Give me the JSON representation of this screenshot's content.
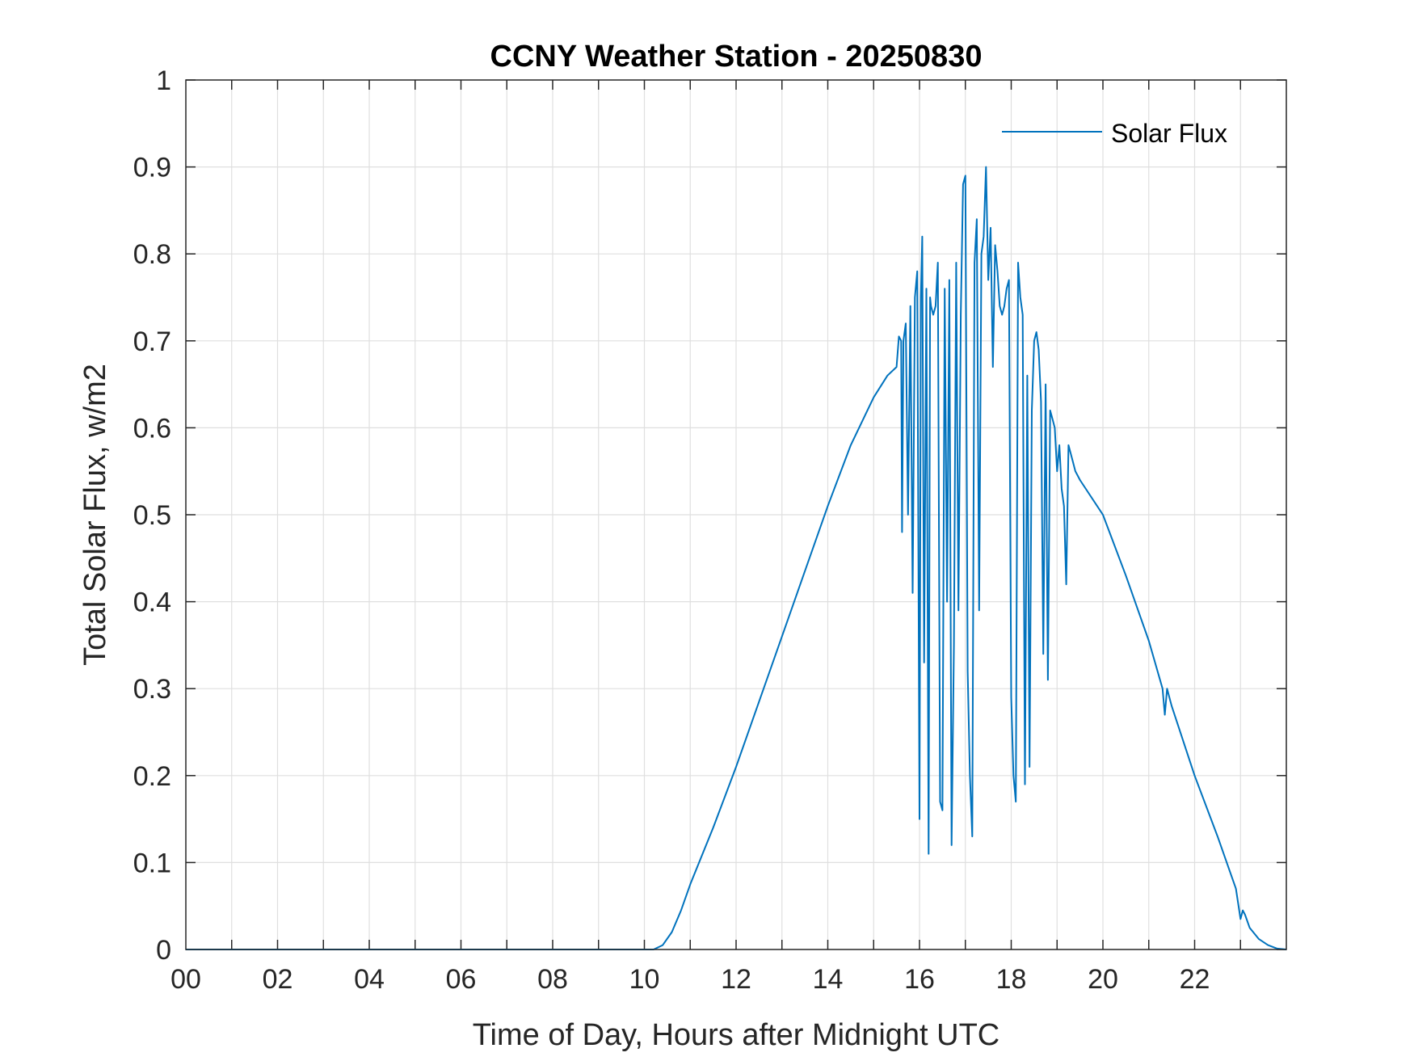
{
  "chart_data": {
    "type": "line",
    "title": "CCNY Weather Station - 20250830",
    "xlabel": "Time of Day, Hours after Midnight UTC",
    "ylabel": "Total Solar Flux, w/m2",
    "xlim": [
      0,
      24
    ],
    "ylim": [
      0,
      1
    ],
    "xticks": [
      0,
      2,
      4,
      6,
      8,
      10,
      12,
      14,
      16,
      18,
      20,
      22
    ],
    "xtick_labels": [
      "00",
      "02",
      "04",
      "06",
      "08",
      "10",
      "12",
      "14",
      "16",
      "18",
      "20",
      "22"
    ],
    "yticks": [
      0,
      0.1,
      0.2,
      0.3,
      0.4,
      0.5,
      0.6,
      0.7,
      0.8,
      0.9,
      1
    ],
    "ytick_labels": [
      "0",
      "0.1",
      "0.2",
      "0.3",
      "0.4",
      "0.5",
      "0.6",
      "0.7",
      "0.8",
      "0.9",
      "1"
    ],
    "grid": true,
    "legend_position": "top-right",
    "colors": {
      "series": "#0072BD",
      "axes": "#262626",
      "grid": "#dfdfdf"
    },
    "series": [
      {
        "name": "Solar Flux",
        "x": [
          0,
          10.2,
          10.4,
          10.6,
          10.8,
          11.0,
          11.5,
          12.0,
          12.5,
          13.0,
          13.5,
          14.0,
          14.5,
          15.0,
          15.3,
          15.5,
          15.55,
          15.6,
          15.62,
          15.65,
          15.7,
          15.75,
          15.8,
          15.85,
          15.9,
          15.95,
          16.0,
          16.03,
          16.06,
          16.1,
          16.15,
          16.2,
          16.23,
          16.25,
          16.3,
          16.35,
          16.4,
          16.45,
          16.5,
          16.55,
          16.6,
          16.65,
          16.7,
          16.75,
          16.8,
          16.85,
          16.9,
          16.95,
          17.0,
          17.05,
          17.1,
          17.15,
          17.2,
          17.25,
          17.3,
          17.35,
          17.4,
          17.45,
          17.5,
          17.55,
          17.6,
          17.65,
          17.7,
          17.75,
          17.8,
          17.85,
          17.9,
          17.95,
          18.0,
          18.05,
          18.1,
          18.15,
          18.2,
          18.25,
          18.3,
          18.35,
          18.4,
          18.45,
          18.5,
          18.55,
          18.6,
          18.65,
          18.7,
          18.75,
          18.8,
          18.85,
          18.9,
          18.95,
          19.0,
          19.05,
          19.1,
          19.15,
          19.2,
          19.25,
          19.3,
          19.35,
          19.4,
          19.45,
          19.5,
          20.0,
          20.5,
          21.0,
          21.3,
          21.35,
          21.4,
          21.5,
          22.0,
          22.5,
          22.9,
          23.0,
          23.05,
          23.1,
          23.2,
          23.4,
          23.6,
          23.8,
          24.0
        ],
        "y": [
          0,
          0,
          0.005,
          0.02,
          0.045,
          0.075,
          0.14,
          0.21,
          0.285,
          0.36,
          0.435,
          0.51,
          0.58,
          0.635,
          0.66,
          0.67,
          0.705,
          0.7,
          0.48,
          0.7,
          0.72,
          0.5,
          0.74,
          0.41,
          0.75,
          0.78,
          0.15,
          0.75,
          0.82,
          0.33,
          0.76,
          0.11,
          0.75,
          0.74,
          0.73,
          0.74,
          0.79,
          0.17,
          0.16,
          0.76,
          0.4,
          0.77,
          0.12,
          0.35,
          0.79,
          0.39,
          0.73,
          0.88,
          0.89,
          0.32,
          0.2,
          0.13,
          0.79,
          0.84,
          0.39,
          0.8,
          0.82,
          0.9,
          0.77,
          0.83,
          0.67,
          0.81,
          0.78,
          0.74,
          0.73,
          0.74,
          0.76,
          0.77,
          0.29,
          0.2,
          0.17,
          0.79,
          0.75,
          0.73,
          0.19,
          0.66,
          0.21,
          0.62,
          0.7,
          0.71,
          0.69,
          0.63,
          0.34,
          0.65,
          0.31,
          0.62,
          0.61,
          0.6,
          0.55,
          0.58,
          0.53,
          0.51,
          0.42,
          0.58,
          0.57,
          0.56,
          0.55,
          0.545,
          0.54,
          0.5,
          0.43,
          0.355,
          0.3,
          0.27,
          0.3,
          0.28,
          0.2,
          0.13,
          0.07,
          0.035,
          0.045,
          0.04,
          0.025,
          0.012,
          0.005,
          0.001,
          0
        ]
      }
    ]
  }
}
